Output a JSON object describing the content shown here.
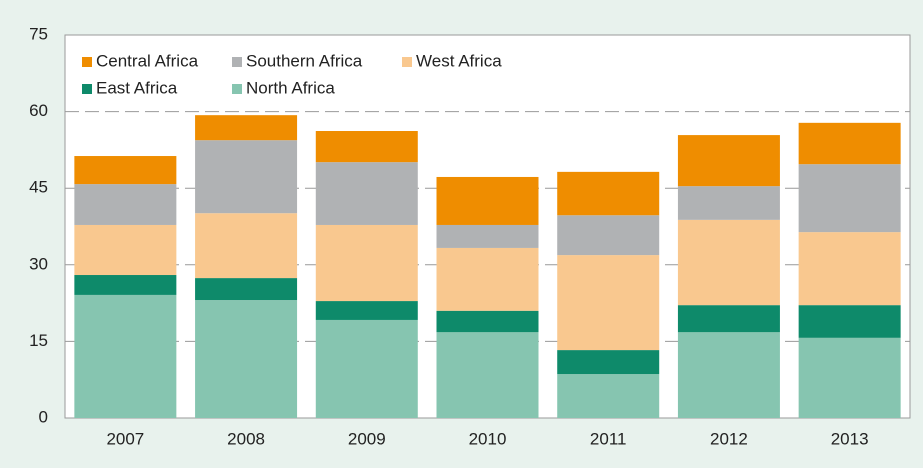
{
  "chart_data": {
    "type": "stacked_bar",
    "categories": [
      "2007",
      "2008",
      "2009",
      "2010",
      "2011",
      "2012",
      "2013"
    ],
    "series": [
      {
        "name": "North Africa",
        "color": "#86c5b0",
        "values": [
          24.1,
          23.1,
          19.2,
          16.8,
          8.6,
          16.8,
          15.7
        ]
      },
      {
        "name": "East Africa",
        "color": "#0e8a6a",
        "values": [
          3.9,
          4.3,
          3.7,
          4.2,
          4.7,
          5.3,
          6.4
        ]
      },
      {
        "name": "West Africa",
        "color": "#f9c88f",
        "values": [
          9.8,
          12.7,
          14.9,
          12.3,
          18.6,
          16.7,
          14.3
        ]
      },
      {
        "name": "Southern Africa",
        "color": "#b0b2b4",
        "values": [
          8.0,
          14.3,
          12.3,
          4.5,
          7.8,
          6.6,
          13.3
        ]
      },
      {
        "name": "Central Africa",
        "color": "#ef8d00",
        "values": [
          5.5,
          4.9,
          6.1,
          9.4,
          8.5,
          10.0,
          8.1
        ]
      }
    ],
    "ylim": [
      0,
      75
    ],
    "yticks": [
      0,
      15,
      30,
      45,
      60,
      75
    ],
    "grid": true
  }
}
